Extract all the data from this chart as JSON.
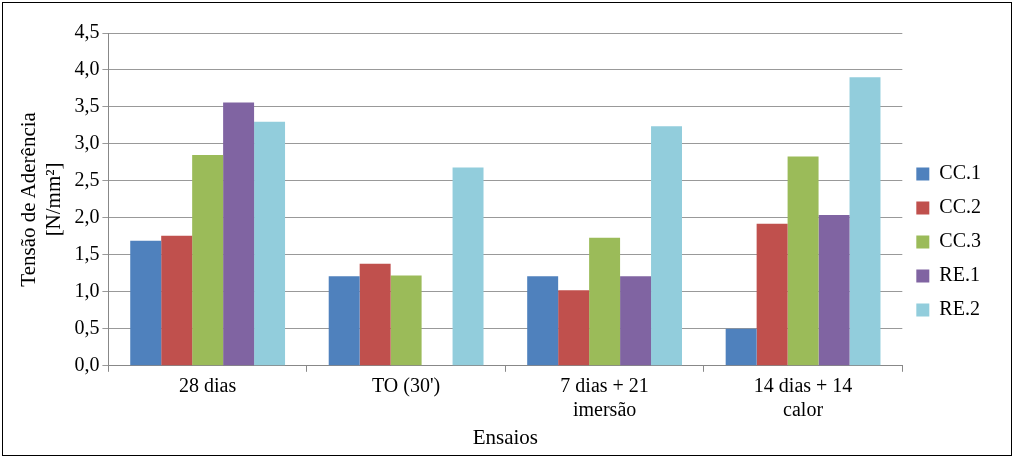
{
  "chart_data": {
    "type": "bar",
    "xlabel": "Ensaios",
    "ylabel": "Tensão de Aderência\n[N/mm²]",
    "categories": [
      "28 dias",
      "TO (30')",
      "7 dias + 21\nimersão",
      "14 dias + 14\ncalor"
    ],
    "series": [
      {
        "name": "CC.1",
        "color": "#4f81bd",
        "values": [
          1.69,
          1.21,
          1.21,
          0.5
        ]
      },
      {
        "name": "CC.2",
        "color": "#c0504d",
        "values": [
          1.76,
          1.38,
          1.02,
          1.92
        ]
      },
      {
        "name": "CC.3",
        "color": "#9bbb59",
        "values": [
          2.85,
          1.22,
          1.73,
          2.83
        ]
      },
      {
        "name": "RE.1",
        "color": "#8064a2",
        "values": [
          3.56,
          null,
          1.21,
          2.04
        ]
      },
      {
        "name": "RE.2",
        "color": "#92cddc",
        "values": [
          3.3,
          2.68,
          3.24,
          3.9
        ]
      }
    ],
    "ylim": [
      0,
      4.5
    ],
    "yticks": [
      {
        "value": 0,
        "label": "0,0"
      },
      {
        "value": 0.5,
        "label": "0,5"
      },
      {
        "value": 1,
        "label": "1,0"
      },
      {
        "value": 1.5,
        "label": "1,5"
      },
      {
        "value": 2,
        "label": "2,0"
      },
      {
        "value": 2.5,
        "label": "2,5"
      },
      {
        "value": 3,
        "label": "3,0"
      },
      {
        "value": 3.5,
        "label": "3,5"
      },
      {
        "value": 4,
        "label": "4,0"
      },
      {
        "value": 4.5,
        "label": "4,5"
      }
    ],
    "grid": "y",
    "legend": "right"
  }
}
